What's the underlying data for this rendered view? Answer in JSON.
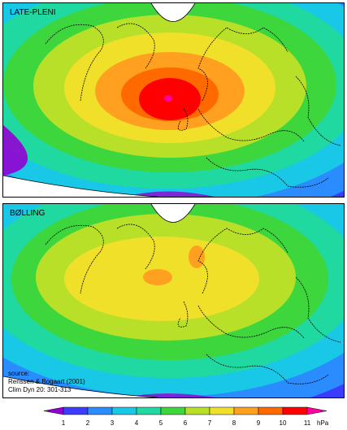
{
  "panels": [
    {
      "label": "LATE-PLENI"
    },
    {
      "label": "BØLLING"
    }
  ],
  "source": {
    "line1": "source:",
    "line2": "Renssen & Bogaart (2001)",
    "line3": "Clim Dyn 20: 301-313"
  },
  "legend": {
    "ticks": [
      "1",
      "2",
      "3",
      "4",
      "5",
      "6",
      "7",
      "8",
      "9",
      "10",
      "11"
    ],
    "unit": "hPa",
    "colors": [
      "#9400d3",
      "#3c3cff",
      "#2a8cff",
      "#18c8e6",
      "#20d9a0",
      "#3dd63d",
      "#b8e028",
      "#f0e02a",
      "#ffa020",
      "#ff6a00",
      "#ff0000",
      "#ff00a0"
    ]
  }
}
